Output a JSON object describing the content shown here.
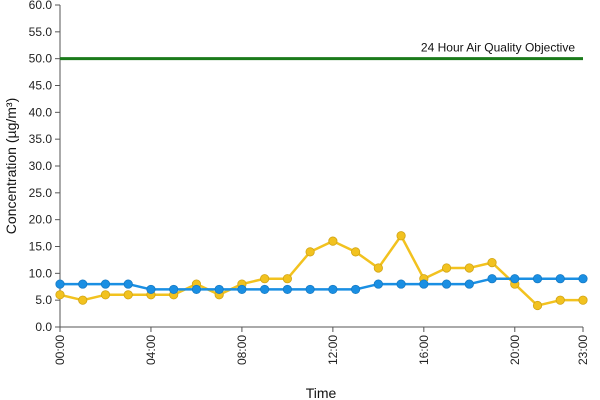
{
  "chart_data": {
    "type": "line",
    "xlabel": "Time",
    "ylabel": "Concentration (µg/m³)",
    "ylim": [
      0,
      60
    ],
    "y_ticks": [
      "0.0",
      "5.0",
      "10.0",
      "15.0",
      "20.0",
      "25.0",
      "30.0",
      "35.0",
      "40.0",
      "45.0",
      "50.0",
      "55.0",
      "60.0"
    ],
    "x_ticks": [
      "00:00",
      "04:00",
      "08:00",
      "12:00",
      "16:00",
      "20:00",
      "23:00"
    ],
    "x_tick_hours": [
      0,
      4,
      8,
      12,
      16,
      20,
      23
    ],
    "x": [
      0,
      1,
      2,
      3,
      4,
      5,
      6,
      7,
      8,
      9,
      10,
      11,
      12,
      13,
      14,
      15,
      16,
      17,
      18,
      19,
      20,
      21,
      22,
      23
    ],
    "grid": false,
    "reference_line": {
      "value": 50,
      "label": "24 Hour Air Quality Objective",
      "color": "#1a7a1a"
    },
    "series": [
      {
        "color": "#f2c21f",
        "values": [
          6,
          5,
          6,
          6,
          6,
          6,
          8,
          6,
          8,
          9,
          9,
          14,
          16,
          14,
          11,
          17,
          9,
          11,
          11,
          12,
          8,
          4,
          5,
          5
        ]
      },
      {
        "color": "#1a8fe3",
        "values": [
          8,
          8,
          8,
          8,
          7,
          7,
          7,
          7,
          7,
          7,
          7,
          7,
          7,
          7,
          8,
          8,
          8,
          8,
          8,
          9,
          9,
          9,
          9,
          9
        ]
      }
    ]
  }
}
